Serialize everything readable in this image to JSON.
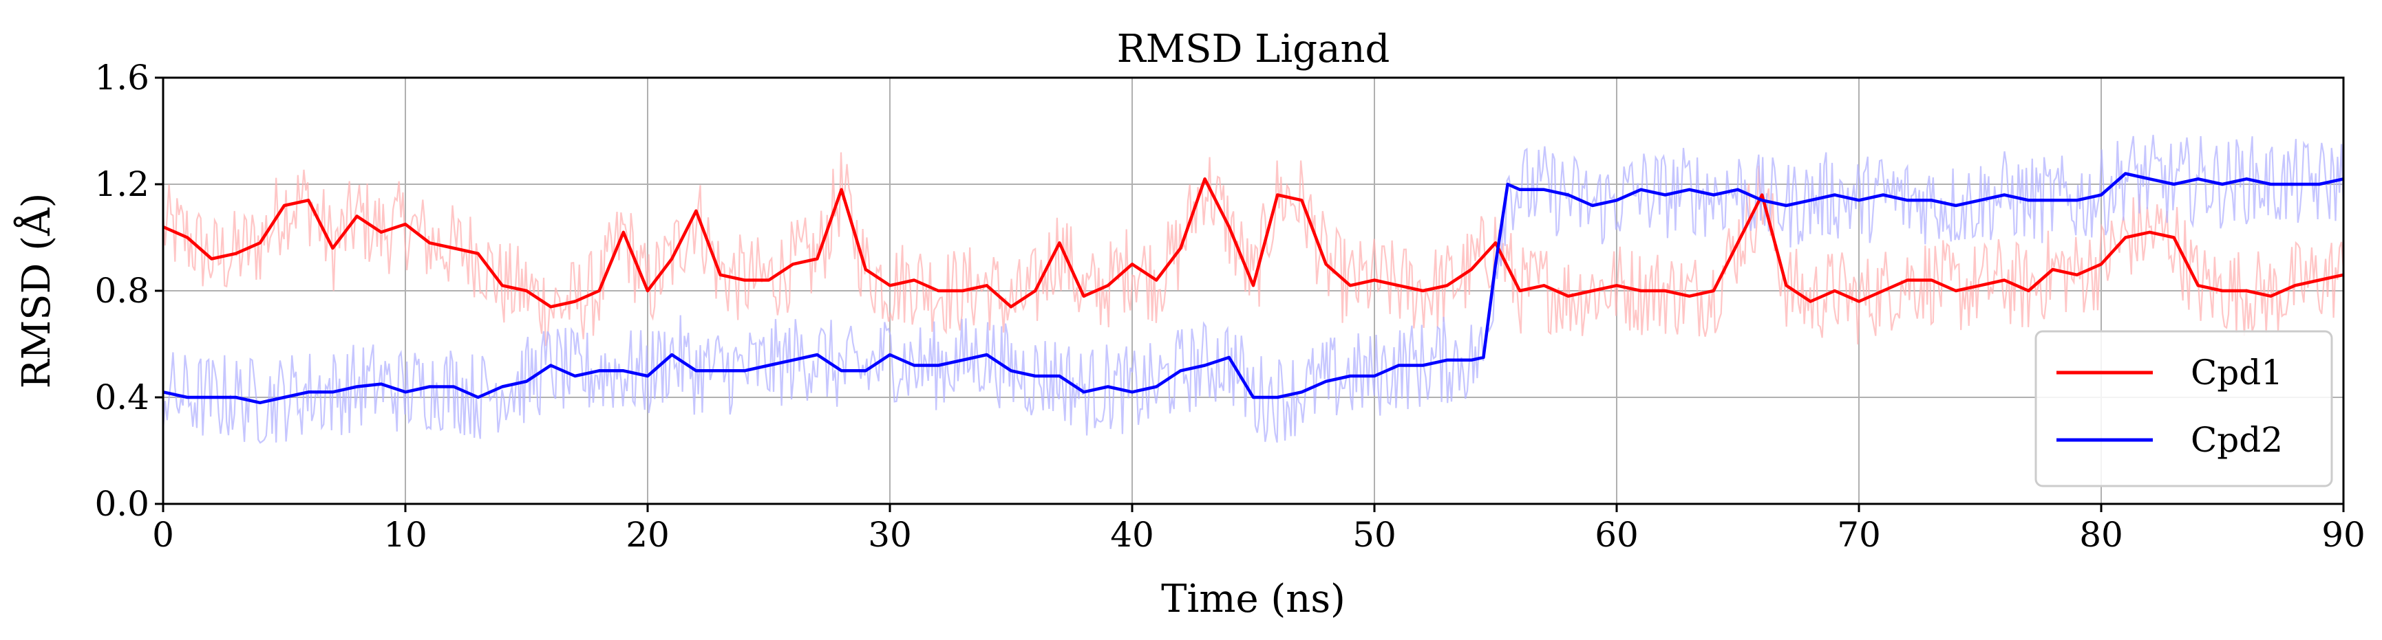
{
  "chart_data": {
    "type": "line",
    "title": "RMSD Ligand",
    "xlabel": "Time (ns)",
    "ylabel": "RMSD (Å)",
    "xlim": [
      0,
      90
    ],
    "ylim": [
      0.0,
      1.6
    ],
    "x_ticks": [
      0,
      10,
      20,
      30,
      40,
      50,
      60,
      70,
      80,
      90
    ],
    "x_tick_labels": [
      "0",
      "10",
      "20",
      "30",
      "40",
      "50",
      "60",
      "70",
      "80",
      "90"
    ],
    "y_ticks": [
      0.0,
      0.4,
      0.8,
      1.2,
      1.6
    ],
    "y_tick_labels": [
      "0.0",
      "0.4",
      "0.8",
      "1.2",
      "1.6"
    ],
    "grid": true,
    "legend_position": "lower-right",
    "series": [
      {
        "name": "Cpd1",
        "color": "#ff0000",
        "raw_color": "#ffb3b3",
        "x": [
          0,
          1,
          2,
          3,
          4,
          5,
          6,
          7,
          8,
          9,
          10,
          11,
          12,
          13,
          14,
          15,
          16,
          17,
          18,
          19,
          20,
          21,
          22,
          23,
          24,
          25,
          26,
          27,
          28,
          29,
          30,
          31,
          32,
          33,
          34,
          35,
          36,
          37,
          38,
          39,
          40,
          41,
          42,
          43,
          44,
          45,
          46,
          47,
          48,
          49,
          50,
          51,
          52,
          53,
          54,
          55,
          56,
          57,
          58,
          59,
          60,
          61,
          62,
          63,
          64,
          65,
          66,
          67,
          68,
          69,
          70,
          71,
          72,
          73,
          74,
          75,
          76,
          77,
          78,
          79,
          80,
          81,
          82,
          83,
          84,
          85,
          86,
          87,
          88,
          89,
          90
        ],
        "y": [
          1.04,
          1.0,
          0.92,
          0.94,
          0.98,
          1.12,
          1.14,
          0.96,
          1.08,
          1.02,
          1.05,
          0.98,
          0.96,
          0.94,
          0.82,
          0.8,
          0.74,
          0.76,
          0.8,
          1.02,
          0.8,
          0.92,
          1.1,
          0.86,
          0.84,
          0.84,
          0.9,
          0.92,
          1.18,
          0.88,
          0.82,
          0.84,
          0.8,
          0.8,
          0.82,
          0.74,
          0.8,
          0.98,
          0.78,
          0.82,
          0.9,
          0.84,
          0.96,
          1.22,
          1.04,
          0.82,
          1.16,
          1.14,
          0.9,
          0.82,
          0.84,
          0.82,
          0.8,
          0.82,
          0.88,
          0.98,
          0.8,
          0.82,
          0.78,
          0.8,
          0.82,
          0.8,
          0.8,
          0.78,
          0.8,
          0.98,
          1.16,
          0.82,
          0.76,
          0.8,
          0.76,
          0.8,
          0.84,
          0.84,
          0.8,
          0.82,
          0.84,
          0.8,
          0.88,
          0.86,
          0.9,
          1.0,
          1.02,
          1.0,
          0.82,
          0.8,
          0.8,
          0.78,
          0.82,
          0.84,
          0.86
        ]
      },
      {
        "name": "Cpd2",
        "color": "#0000ff",
        "raw_color": "#b3b3ff",
        "x": [
          0,
          1,
          2,
          3,
          4,
          5,
          6,
          7,
          8,
          9,
          10,
          11,
          12,
          13,
          14,
          15,
          16,
          17,
          18,
          19,
          20,
          21,
          22,
          23,
          24,
          25,
          26,
          27,
          28,
          29,
          30,
          31,
          32,
          33,
          34,
          35,
          36,
          37,
          38,
          39,
          40,
          41,
          42,
          43,
          44,
          45,
          46,
          47,
          48,
          49,
          50,
          51,
          52,
          53,
          54,
          54.5,
          55,
          55.5,
          56,
          57,
          58,
          59,
          60,
          61,
          62,
          63,
          64,
          65,
          66,
          67,
          68,
          69,
          70,
          71,
          72,
          73,
          74,
          75,
          76,
          77,
          78,
          79,
          80,
          81,
          82,
          83,
          84,
          85,
          86,
          87,
          88,
          89,
          90
        ],
        "y": [
          0.42,
          0.4,
          0.4,
          0.4,
          0.38,
          0.4,
          0.42,
          0.42,
          0.44,
          0.45,
          0.42,
          0.44,
          0.44,
          0.4,
          0.44,
          0.46,
          0.52,
          0.48,
          0.5,
          0.5,
          0.48,
          0.56,
          0.5,
          0.5,
          0.5,
          0.52,
          0.54,
          0.56,
          0.5,
          0.5,
          0.56,
          0.52,
          0.52,
          0.54,
          0.56,
          0.5,
          0.48,
          0.48,
          0.42,
          0.44,
          0.42,
          0.44,
          0.5,
          0.52,
          0.55,
          0.4,
          0.4,
          0.42,
          0.46,
          0.48,
          0.48,
          0.52,
          0.52,
          0.54,
          0.54,
          0.55,
          0.9,
          1.2,
          1.18,
          1.18,
          1.16,
          1.12,
          1.14,
          1.18,
          1.16,
          1.18,
          1.16,
          1.18,
          1.14,
          1.12,
          1.14,
          1.16,
          1.14,
          1.16,
          1.14,
          1.14,
          1.12,
          1.14,
          1.16,
          1.14,
          1.14,
          1.14,
          1.16,
          1.24,
          1.22,
          1.2,
          1.22,
          1.2,
          1.22,
          1.2,
          1.2,
          1.2,
          1.22
        ]
      }
    ]
  }
}
